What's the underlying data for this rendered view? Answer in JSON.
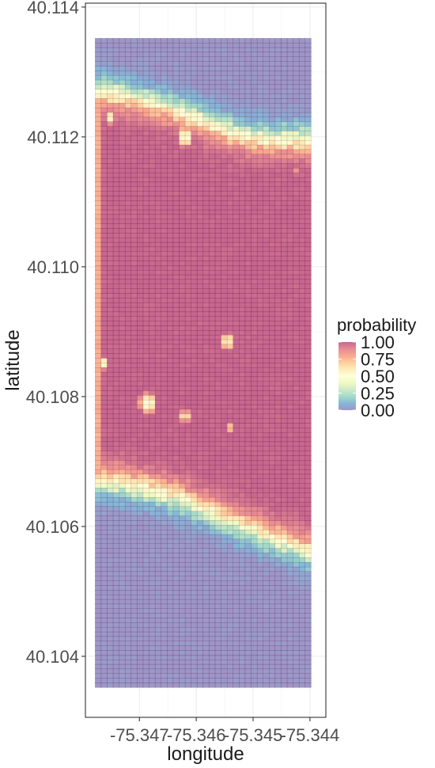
{
  "chart_data": {
    "type": "heatmap",
    "title": "",
    "xlabel": "longitude",
    "ylabel": "latitude",
    "xlim": [
      -75.34795,
      -75.34372
    ],
    "ylim": [
      40.10306,
      40.11406
    ],
    "xticks": [
      -75.347,
      -75.346,
      -75.345,
      -75.344
    ],
    "xtick_labels": [
      "-75.347",
      "-75.346",
      "-75.345",
      "-75.344"
    ],
    "yticks": [
      40.104,
      40.106,
      40.108,
      40.11,
      40.112,
      40.114
    ],
    "ytick_labels": [
      "40.104",
      "40.106",
      "40.108",
      "40.110",
      "40.112",
      "40.114"
    ],
    "grid": true,
    "field_extent": {
      "lon": [
        -75.34778,
        -75.34398
      ],
      "lat": [
        40.10352,
        40.11352
      ]
    },
    "color_scale": {
      "name": "Spectral (reversed)",
      "colors": [
        "#5e4fa2",
        "#3288bd",
        "#66c2a5",
        "#abdda4",
        "#e6f598",
        "#ffffbf",
        "#fee08b",
        "#fdae61",
        "#f46d43",
        "#d53e4f",
        "#9e0142"
      ],
      "domain": [
        0,
        1
      ],
      "cell_opacity": 0.6,
      "cell_outline": "#4a0030"
    },
    "legend": {
      "title": "probability",
      "position": "right",
      "breaks": [
        1.0,
        0.75,
        0.5,
        0.25,
        0.0
      ],
      "labels": [
        "1.00",
        "0.75",
        "0.50",
        "0.25",
        "0.00"
      ]
    },
    "regions": {
      "upper_boundary_lat": [
        40.11272,
        40.11265,
        40.11258,
        40.1125,
        40.11238,
        40.11225,
        40.1121,
        40.112,
        40.11197,
        40.11195,
        40.11195
      ],
      "lower_boundary_lat": [
        40.1067,
        40.10668,
        40.10662,
        40.10652,
        40.10642,
        40.10628,
        40.10612,
        40.10598,
        40.10585,
        40.10572,
        40.1056
      ],
      "boundary_lon_samples": [
        -75.34778,
        -75.3474,
        -75.34702,
        -75.34664,
        -75.34626,
        -75.34588,
        -75.3455,
        -75.34512,
        -75.34474,
        -75.34436,
        -75.34398
      ],
      "transition_width_deg": 0.00045,
      "low_patches": [
        {
          "lon": -75.3462,
          "lat": 40.112,
          "r_lon": 0.00015,
          "r_lat": 0.00018,
          "value": 0.48
        },
        {
          "lon": -75.34545,
          "lat": 40.10885,
          "r_lon": 0.00013,
          "r_lat": 0.00015,
          "value": 0.55
        },
        {
          "lon": -75.34685,
          "lat": 40.1079,
          "r_lon": 0.00018,
          "r_lat": 0.00018,
          "value": 0.5
        },
        {
          "lon": -75.3462,
          "lat": 40.1077,
          "r_lon": 0.00012,
          "r_lat": 0.0001,
          "value": 0.6
        },
        {
          "lon": -75.3475,
          "lat": 40.1123,
          "r_lon": 8e-05,
          "r_lat": 0.00012,
          "value": 0.55
        },
        {
          "lon": -75.3442,
          "lat": 40.11148,
          "r_lon": 5e-05,
          "r_lat": 7e-05,
          "value": 0.45
        },
        {
          "lon": -75.3454,
          "lat": 40.10752,
          "r_lon": 8e-05,
          "r_lat": 6e-05,
          "value": 0.62
        },
        {
          "lon": -75.34765,
          "lat": 40.1085,
          "r_lon": 8e-05,
          "r_lat": 0.0001,
          "value": 0.3
        }
      ]
    }
  }
}
